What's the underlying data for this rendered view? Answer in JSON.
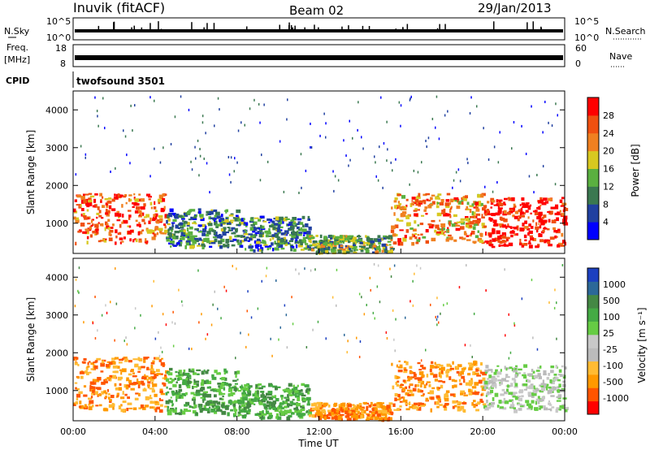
{
  "header": {
    "station": "Inuvik (fitACF)",
    "beam": "Beam 02",
    "date": "29/Jan/2013"
  },
  "top_panels": {
    "nsky_label": "N.Sky",
    "nsky_ticks": [
      "10^5",
      "10^0"
    ],
    "nsearch_label": "N.Search",
    "freq_label_1": "Freq.",
    "freq_label_2": "[MHz]",
    "freq_ticks": [
      "18",
      "8"
    ],
    "nave_ticks": [
      "60",
      "0"
    ],
    "nave_label": "Nave",
    "cpid_label": "CPID",
    "cpid_value": "twofsound 3501"
  },
  "colors": {
    "power_scale": [
      "#0000ff",
      "#2040a0",
      "#3a7850",
      "#5ab040",
      "#d8c820",
      "#f08020",
      "#f05010",
      "#ff0000"
    ],
    "velocity_scale": [
      "#ff0000",
      "#ff5500",
      "#ff9900",
      "#ffbb33",
      "#bbbbbb",
      "#c8c8c8",
      "#66cc44",
      "#44aa44",
      "#448844",
      "#2c6898",
      "#1c40c0"
    ]
  },
  "chart_data": [
    {
      "type": "heatmap",
      "panel": "power",
      "ylabel": "Slant Range [km]",
      "xlabel": "Time UT",
      "x_ticks": [
        "00:00",
        "04:00",
        "08:00",
        "12:00",
        "16:00",
        "20:00",
        "00:00"
      ],
      "y_ticks": [
        "1000",
        "2000",
        "3000",
        "4000"
      ],
      "ylim": [
        200,
        4500
      ],
      "colorbar": {
        "label": "Power [dB]",
        "ticks": [
          "28",
          "24",
          "20",
          "16",
          "12",
          "8",
          "4"
        ]
      },
      "regions": [
        {
          "t_start": 0.0,
          "t_end": 4.5,
          "range_min": 500,
          "range_max": 1800,
          "level": 24
        },
        {
          "t_start": 4.5,
          "t_end": 8.0,
          "range_min": 400,
          "range_max": 1400,
          "level": 12
        },
        {
          "t_start": 8.0,
          "t_end": 11.5,
          "range_min": 300,
          "range_max": 1200,
          "level": 10
        },
        {
          "t_start": 11.5,
          "t_end": 15.5,
          "range_min": 250,
          "range_max": 700,
          "level": 14
        },
        {
          "t_start": 15.5,
          "t_end": 20.0,
          "range_min": 500,
          "range_max": 1800,
          "level": 22
        },
        {
          "t_start": 20.0,
          "t_end": 24.0,
          "range_min": 400,
          "range_max": 1700,
          "level": 28
        }
      ]
    },
    {
      "type": "heatmap",
      "panel": "velocity",
      "ylabel": "Slant Range [km]",
      "xlabel": "Time UT",
      "x_ticks": [
        "00:00",
        "04:00",
        "08:00",
        "12:00",
        "16:00",
        "20:00",
        "00:00"
      ],
      "y_ticks": [
        "1000",
        "2000",
        "3000",
        "4000"
      ],
      "ylim": [
        200,
        4500
      ],
      "colorbar": {
        "label": "Velocity [m s⁻¹]",
        "ticks": [
          "1000",
          "500",
          "100",
          "25",
          "-25",
          "-100",
          "-500",
          "-1000"
        ]
      },
      "regions": [
        {
          "t_start": 0.0,
          "t_end": 4.5,
          "range_min": 500,
          "range_max": 1900,
          "velocity": -100
        },
        {
          "t_start": 4.5,
          "t_end": 8.0,
          "range_min": 400,
          "range_max": 1600,
          "velocity": 50
        },
        {
          "t_start": 8.0,
          "t_end": 11.5,
          "range_min": 300,
          "range_max": 1200,
          "velocity": 100
        },
        {
          "t_start": 11.5,
          "t_end": 15.5,
          "range_min": 250,
          "range_max": 700,
          "velocity": -150
        },
        {
          "t_start": 15.5,
          "t_end": 20.0,
          "range_min": 500,
          "range_max": 1800,
          "velocity": -100
        },
        {
          "t_start": 20.0,
          "t_end": 24.0,
          "range_min": 500,
          "range_max": 1700,
          "velocity": 0
        }
      ]
    }
  ]
}
